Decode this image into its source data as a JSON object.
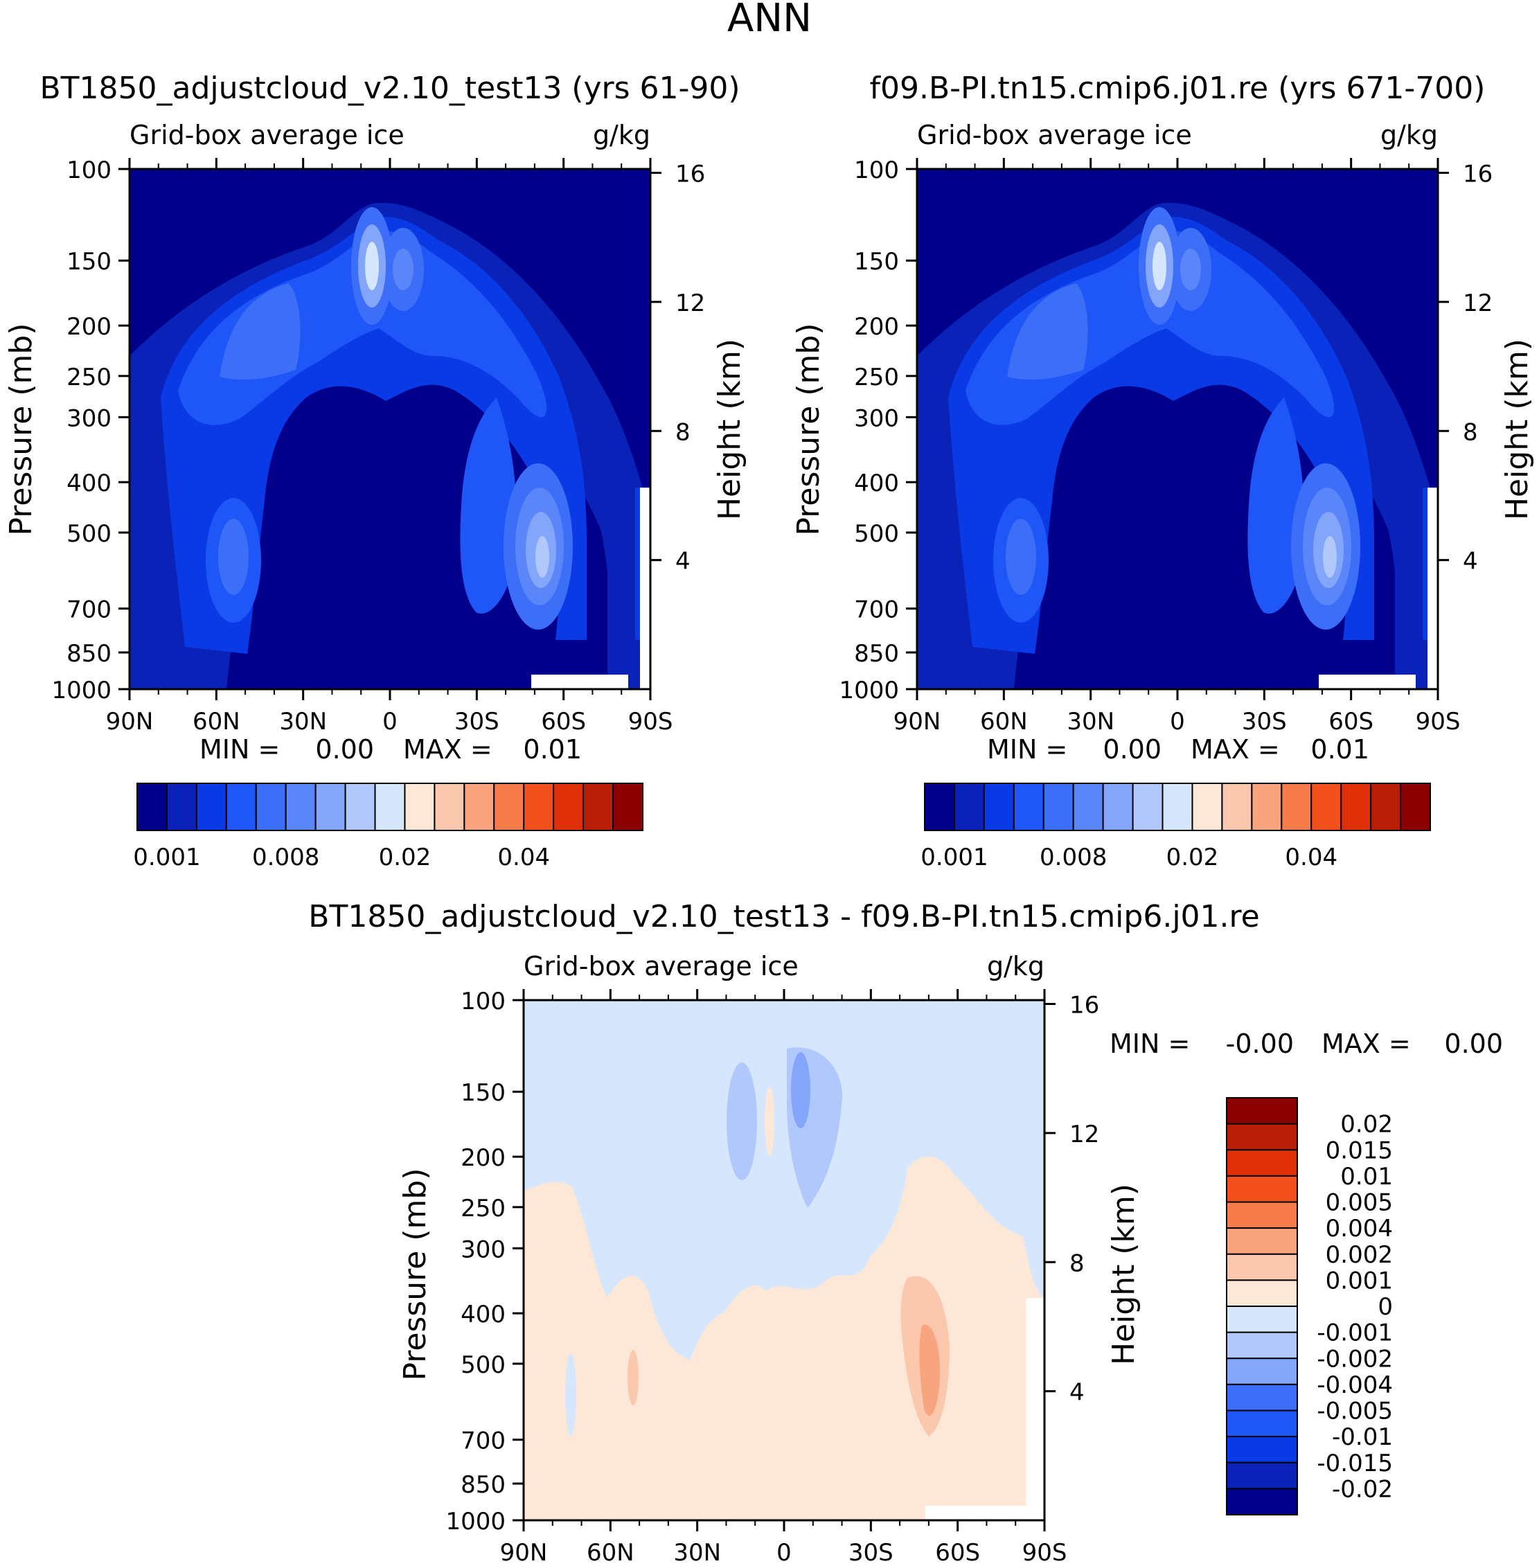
{
  "page_title": "ANN",
  "chart_data": [
    {
      "type": "heatmap",
      "id": "left",
      "title": "BT1850_adjustcloud_v2.10_test13 (yrs 61-90)",
      "left_label": "Grid-box average ice",
      "right_label": "g/kg",
      "ylabel": "Pressure (mb)",
      "ylabel_right": "Height (km)",
      "y_ticks": [
        "100",
        "150",
        "200",
        "250",
        "300",
        "400",
        "500",
        "700",
        "850",
        "1000"
      ],
      "y_right_ticks": [
        "16",
        "12",
        "8",
        "4"
      ],
      "x_ticks": [
        "90N",
        "60N",
        "30N",
        "0",
        "30S",
        "60S",
        "90S"
      ],
      "ylim": [
        1000,
        100
      ],
      "xlim": [
        "90N",
        "90S"
      ],
      "min_label": "MIN =",
      "min_value": "0.00",
      "max_label": "MAX =",
      "max_value": "0.01",
      "colorbar_labels": [
        "0.001",
        "0.008",
        "0.02",
        "0.04"
      ],
      "colorbar_colors": [
        "#00008b",
        "#0a22b8",
        "#0a3ae6",
        "#1e56f7",
        "#3c6ef8",
        "#5a86f9",
        "#84a6fa",
        "#b0c8fb",
        "#d6e6fc",
        "#fde8d8",
        "#fbc8ae",
        "#f8a47f",
        "#f67c4c",
        "#f2501c",
        "#e03008",
        "#b81e06",
        "#8b0000"
      ]
    },
    {
      "type": "heatmap",
      "id": "right",
      "title": "f09.B-PI.tn15.cmip6.j01.re (yrs 671-700)",
      "left_label": "Grid-box average ice",
      "right_label": "g/kg",
      "ylabel": "Pressure (mb)",
      "ylabel_right": "Height (km)",
      "y_ticks": [
        "100",
        "150",
        "200",
        "250",
        "300",
        "400",
        "500",
        "700",
        "850",
        "1000"
      ],
      "y_right_ticks": [
        "16",
        "12",
        "8",
        "4"
      ],
      "x_ticks": [
        "90N",
        "60N",
        "30N",
        "0",
        "30S",
        "60S",
        "90S"
      ],
      "ylim": [
        1000,
        100
      ],
      "xlim": [
        "90N",
        "90S"
      ],
      "min_label": "MIN =",
      "min_value": "0.00",
      "max_label": "MAX =",
      "max_value": "0.01",
      "colorbar_labels": [
        "0.001",
        "0.008",
        "0.02",
        "0.04"
      ],
      "colorbar_colors": [
        "#00008b",
        "#0a22b8",
        "#0a3ae6",
        "#1e56f7",
        "#3c6ef8",
        "#5a86f9",
        "#84a6fa",
        "#b0c8fb",
        "#d6e6fc",
        "#fde8d8",
        "#fbc8ae",
        "#f8a47f",
        "#f67c4c",
        "#f2501c",
        "#e03008",
        "#b81e06",
        "#8b0000"
      ]
    },
    {
      "type": "heatmap",
      "id": "diff",
      "title": "BT1850_adjustcloud_v2.10_test13 - f09.B-PI.tn15.cmip6.j01.re",
      "left_label": "Grid-box average ice",
      "right_label": "g/kg",
      "ylabel": "Pressure (mb)",
      "ylabel_right": "Height (km)",
      "y_ticks": [
        "100",
        "150",
        "200",
        "250",
        "300",
        "400",
        "500",
        "700",
        "850",
        "1000"
      ],
      "y_right_ticks": [
        "16",
        "12",
        "8",
        "4"
      ],
      "x_ticks": [
        "90N",
        "60N",
        "30N",
        "0",
        "30S",
        "60S",
        "90S"
      ],
      "ylim": [
        1000,
        100
      ],
      "xlim": [
        "90N",
        "90S"
      ],
      "min_label": "MIN =",
      "min_value": "-0.00",
      "max_label": "MAX =",
      "max_value": "0.00",
      "colorbar_labels": [
        "0.02",
        "0.015",
        "0.01",
        "0.005",
        "0.004",
        "0.002",
        "0.001",
        "0",
        "-0.001",
        "-0.002",
        "-0.004",
        "-0.005",
        "-0.01",
        "-0.015",
        "-0.02"
      ],
      "colorbar_colors": [
        "#8b0000",
        "#b81e06",
        "#e03008",
        "#f2501c",
        "#f67c4c",
        "#f8a47f",
        "#fbc8ae",
        "#fde8d8",
        "#d6e6fc",
        "#b0c8fb",
        "#84a6fa",
        "#3c6ef8",
        "#1e56f7",
        "#0a3ae6",
        "#0a22b8",
        "#00008b"
      ]
    }
  ]
}
